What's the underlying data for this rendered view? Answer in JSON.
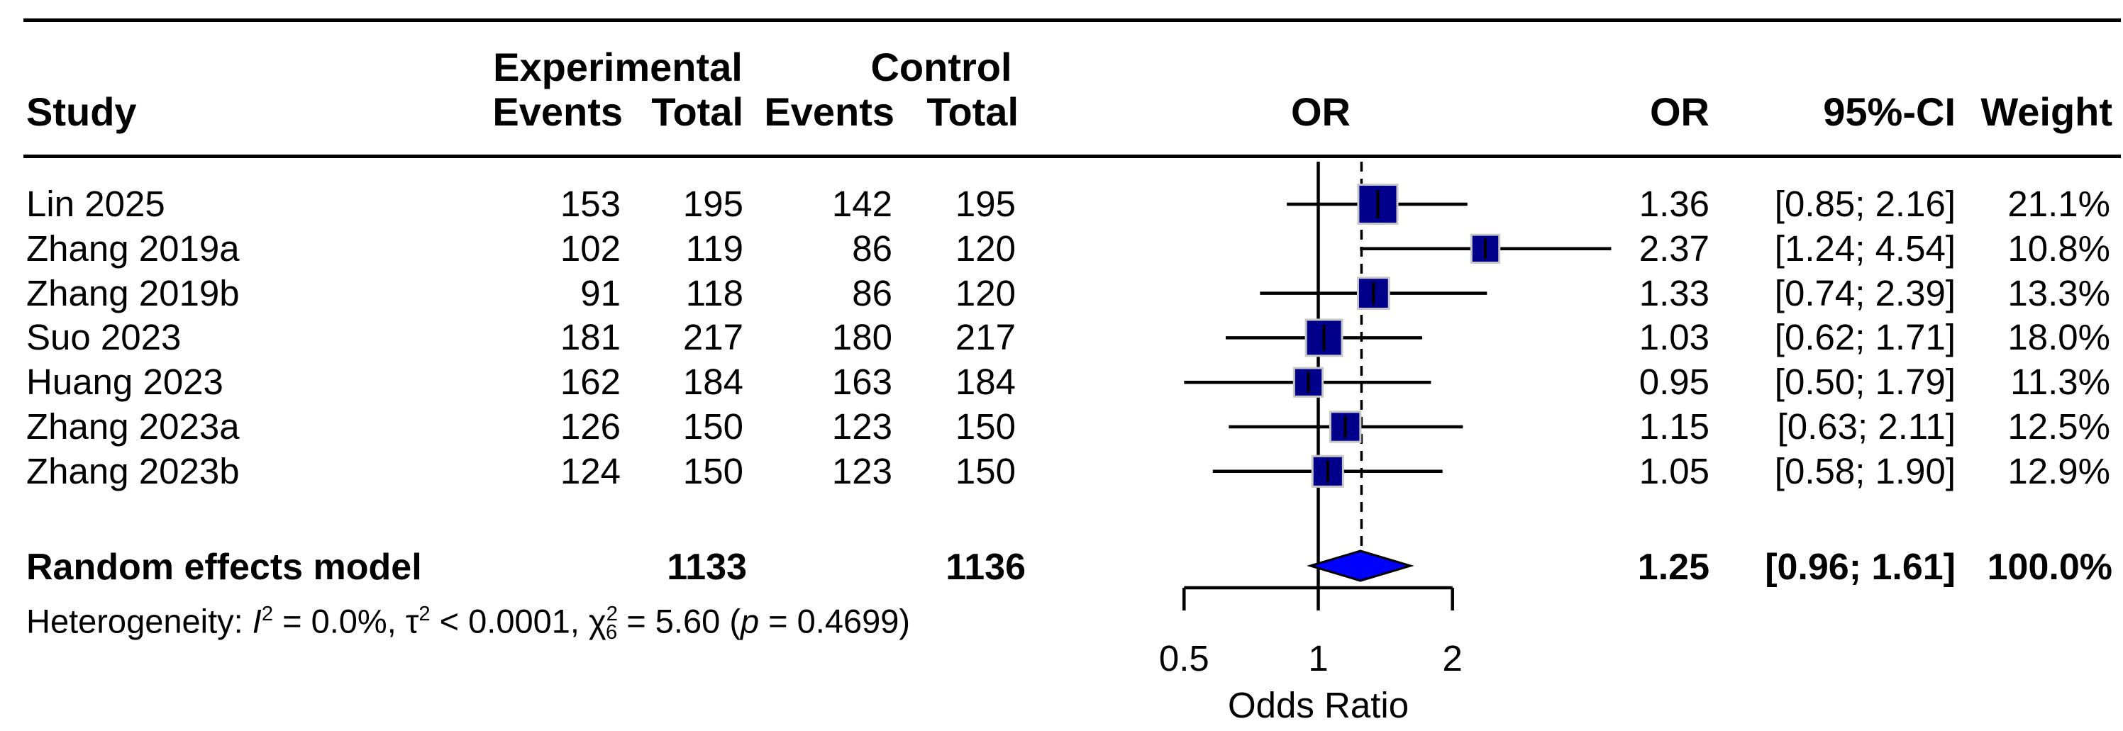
{
  "header": {
    "study": "Study",
    "group_experimental": "Experimental",
    "group_control": "Control",
    "events": "Events",
    "total": "Total",
    "or_plot": "OR",
    "or_col": "OR",
    "ci_col": "95%-CI",
    "weight_col": "Weight"
  },
  "chart_data": {
    "type": "scatter",
    "subtype": "forest-plot",
    "effect_measure": "OR",
    "x_scale": "log",
    "x_ticks": [
      0.5,
      1,
      2
    ],
    "x_tick_labels": [
      "0.5",
      "1",
      "2"
    ],
    "xlabel": "Odds Ratio",
    "reference_line": 1,
    "pooled_line": 1.25,
    "studies": [
      {
        "name": "Lin 2025",
        "exp_events": "153",
        "exp_total": "195",
        "ctrl_events": "142",
        "ctrl_total": "195",
        "or": 1.36,
        "ci_low": 0.85,
        "ci_high": 2.16,
        "weight": 21.1,
        "or_label": "1.36",
        "ci_label": "[0.85; 2.16]",
        "weight_label": "21.1%"
      },
      {
        "name": "Zhang 2019a",
        "exp_events": "102",
        "exp_total": "119",
        "ctrl_events": "86",
        "ctrl_total": "120",
        "or": 2.37,
        "ci_low": 1.24,
        "ci_high": 4.54,
        "weight": 10.8,
        "or_label": "2.37",
        "ci_label": "[1.24; 4.54]",
        "weight_label": "10.8%"
      },
      {
        "name": "Zhang 2019b",
        "exp_events": "91",
        "exp_total": "118",
        "ctrl_events": "86",
        "ctrl_total": "120",
        "or": 1.33,
        "ci_low": 0.74,
        "ci_high": 2.39,
        "weight": 13.3,
        "or_label": "1.33",
        "ci_label": "[0.74; 2.39]",
        "weight_label": "13.3%"
      },
      {
        "name": "Suo 2023",
        "exp_events": "181",
        "exp_total": "217",
        "ctrl_events": "180",
        "ctrl_total": "217",
        "or": 1.03,
        "ci_low": 0.62,
        "ci_high": 1.71,
        "weight": 18.0,
        "or_label": "1.03",
        "ci_label": "[0.62; 1.71]",
        "weight_label": "18.0%"
      },
      {
        "name": "Huang 2023",
        "exp_events": "162",
        "exp_total": "184",
        "ctrl_events": "163",
        "ctrl_total": "184",
        "or": 0.95,
        "ci_low": 0.5,
        "ci_high": 1.79,
        "weight": 11.3,
        "or_label": "0.95",
        "ci_label": "[0.50; 1.79]",
        "weight_label": "11.3%"
      },
      {
        "name": "Zhang 2023a",
        "exp_events": "126",
        "exp_total": "150",
        "ctrl_events": "123",
        "ctrl_total": "150",
        "or": 1.15,
        "ci_low": 0.63,
        "ci_high": 2.11,
        "weight": 12.5,
        "or_label": "1.15",
        "ci_label": "[0.63; 2.11]",
        "weight_label": "12.5%"
      },
      {
        "name": "Zhang 2023b",
        "exp_events": "124",
        "exp_total": "150",
        "ctrl_events": "123",
        "ctrl_total": "150",
        "or": 1.05,
        "ci_low": 0.58,
        "ci_high": 1.9,
        "weight": 12.9,
        "or_label": "1.05",
        "ci_label": "[0.58; 1.90]",
        "weight_label": "12.9%"
      }
    ],
    "pooled": {
      "label": "Random effects model",
      "exp_total": "1133",
      "ctrl_total": "1136",
      "or": 1.25,
      "ci_low": 0.96,
      "ci_high": 1.61,
      "weight": 100.0,
      "or_label": "1.25",
      "ci_label": "[0.96; 1.61]",
      "weight_label": "100.0%"
    },
    "heterogeneity": {
      "i2": "0.0%",
      "tau2": "< 0.0001",
      "chi2": "5.60",
      "df": "6",
      "p": "0.4699",
      "segments": [
        {
          "k": "t",
          "v": "Heterogeneity: "
        },
        {
          "k": "i",
          "v": "I"
        },
        {
          "k": "sup",
          "v": "2"
        },
        {
          "k": "t",
          "v": " = 0.0%, τ"
        },
        {
          "k": "sup",
          "v": "2"
        },
        {
          "k": "t",
          "v": " < 0.0001, χ"
        },
        {
          "k": "sup",
          "v": "2"
        },
        {
          "k": "sub",
          "v": "6"
        },
        {
          "k": "t",
          "v": " = 5.60 ("
        },
        {
          "k": "i",
          "v": "p"
        },
        {
          "k": "t",
          "v": " = 0.4699)"
        }
      ]
    },
    "colors": {
      "square_fill": "#00008B",
      "square_border": "#c8c8c8",
      "diamond_fill": "#0000FF",
      "diamond_border": "#000000",
      "line": "#000000"
    }
  }
}
